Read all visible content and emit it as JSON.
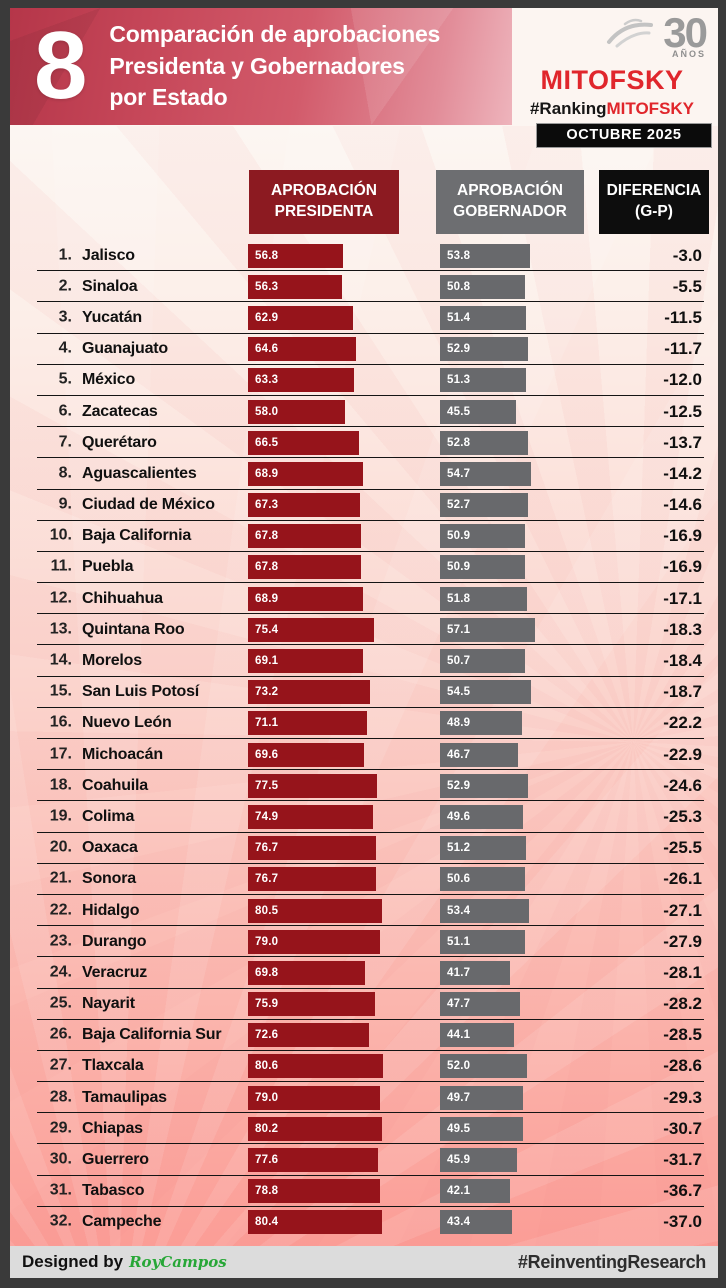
{
  "header": {
    "badge_number": "8",
    "title_lines": [
      "Comparación de aprobaciones",
      "Presidenta y Gobernadores",
      "por Estado"
    ]
  },
  "logo": {
    "anniversary_number": "30",
    "anniversary_label": "AÑOS",
    "brand": "MITOFSKY",
    "hashtag_prefix": "#Ranking",
    "hashtag_brand": "MITOFSKY",
    "date_label": "OCTUBRE 2025"
  },
  "columns": [
    {
      "id": "presidenta",
      "lines": [
        "APROBACIÓN",
        "PRESIDENTA"
      ]
    },
    {
      "id": "gobernador",
      "lines": [
        "APROBACIÓN",
        "GOBERNADOR"
      ]
    },
    {
      "id": "diferencia",
      "lines": [
        "DIFERENCIA",
        "(G-P)"
      ]
    }
  ],
  "chart_data": {
    "type": "bar",
    "orientation": "horizontal",
    "title": "Comparación de aprobaciones Presidenta y Gobernadores por Estado",
    "period": "OCTUBRE 2025",
    "grid": false,
    "value_range": [
      0,
      100
    ],
    "categories": [
      "Jalisco",
      "Sinaloa",
      "Yucatán",
      "Guanajuato",
      "México",
      "Zacatecas",
      "Querétaro",
      "Aguascalientes",
      "Ciudad de México",
      "Baja California",
      "Puebla",
      "Chihuahua",
      "Quintana Roo",
      "Morelos",
      "San Luis Potosí",
      "Nuevo León",
      "Michoacán",
      "Coahuila",
      "Colima",
      "Oaxaca",
      "Sonora",
      "Hidalgo",
      "Durango",
      "Veracruz",
      "Nayarit",
      "Baja California Sur",
      "Tlaxcala",
      "Tamaulipas",
      "Chiapas",
      "Guerrero",
      "Tabasco",
      "Campeche"
    ],
    "series": [
      {
        "name": "APROBACIÓN PRESIDENTA",
        "values": [
          56.8,
          56.3,
          62.9,
          64.6,
          63.3,
          58.0,
          66.5,
          68.9,
          67.3,
          67.8,
          67.8,
          68.9,
          75.4,
          69.1,
          73.2,
          71.1,
          69.6,
          77.5,
          74.9,
          76.7,
          76.7,
          80.5,
          79.0,
          69.8,
          75.9,
          72.6,
          80.6,
          79.0,
          80.2,
          77.6,
          78.8,
          80.4
        ]
      },
      {
        "name": "APROBACIÓN GOBERNADOR",
        "values": [
          53.8,
          50.8,
          51.4,
          52.9,
          51.3,
          45.5,
          52.8,
          54.7,
          52.7,
          50.9,
          50.9,
          51.8,
          57.1,
          50.7,
          54.5,
          48.9,
          46.7,
          52.9,
          49.6,
          51.2,
          50.6,
          53.4,
          51.1,
          41.7,
          47.7,
          44.1,
          52.0,
          49.7,
          49.5,
          45.9,
          42.1,
          43.4
        ]
      },
      {
        "name": "DIFERENCIA (G-P)",
        "values": [
          -3.0,
          -5.5,
          -11.5,
          -11.7,
          -12.0,
          -12.5,
          -13.7,
          -14.2,
          -14.6,
          -16.9,
          -16.9,
          -17.1,
          -18.3,
          -18.4,
          -18.7,
          -22.2,
          -22.9,
          -24.6,
          -25.3,
          -25.5,
          -26.1,
          -27.1,
          -27.9,
          -28.1,
          -28.2,
          -28.5,
          -28.6,
          -29.3,
          -30.7,
          -31.7,
          -36.7,
          -37.0
        ]
      }
    ]
  },
  "footer": {
    "designed_by": "Designed by",
    "designer": "RoyCampos",
    "hashtag": "#ReinventingResearch"
  },
  "colors": {
    "banner_red": "#c64759",
    "bar_presidenta": "#96141b",
    "bar_gobernador": "#68696c",
    "header_presidenta_bg": "#8c1a21",
    "header_gobernador_bg": "#6d6e71",
    "header_diferencia_bg": "#0d0d0d",
    "brand_red": "#e0262c",
    "designer_green": "#27a737"
  }
}
